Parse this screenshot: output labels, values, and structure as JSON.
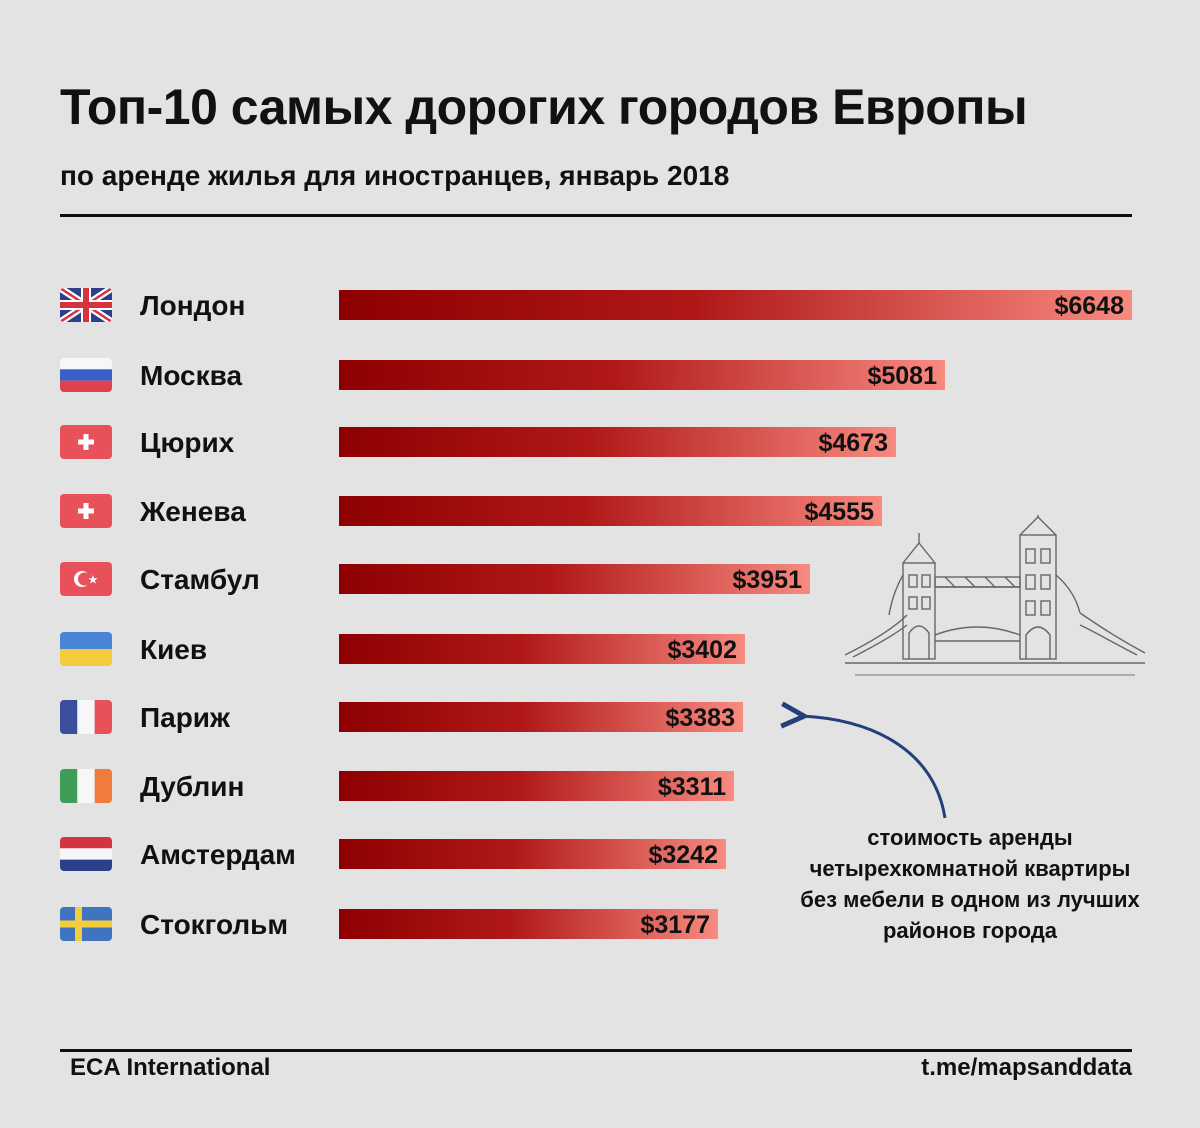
{
  "header": {
    "title": "Топ-10 самых дорогих городов Европы",
    "subtitle": "по аренде жилья для иностранцев, январь 2018"
  },
  "footer": {
    "source": "ECA International",
    "credit": "t.me/mapsanddata"
  },
  "annotation": {
    "lines": [
      "стоимость аренды",
      "четырехкомнатной квартиры",
      "без мебели в одном из лучших",
      "районов города"
    ]
  },
  "colors": {
    "bar_start": "#8e0000",
    "bar_end": "#f88a80",
    "arrow": "#24407a"
  },
  "chart_data": {
    "type": "bar",
    "orientation": "horizontal",
    "categories": [
      "Лондон",
      "Москва",
      "Цюрих",
      "Женева",
      "Стамбул",
      "Киев",
      "Париж",
      "Дублин",
      "Амстердам",
      "Стокгольм"
    ],
    "values": [
      6648,
      5081,
      4673,
      4555,
      3951,
      3402,
      3383,
      3311,
      3242,
      3177
    ],
    "value_labels": [
      "$6648",
      "$5081",
      "$4673",
      "$4555",
      "$3951",
      "$3402",
      "$3383",
      "$3311",
      "$3242",
      "$3177"
    ],
    "flags": [
      "uk-flag-icon",
      "russia-flag-icon",
      "switzerland-flag-icon",
      "switzerland-flag-icon",
      "turkey-flag-icon",
      "ukraine-flag-icon",
      "france-flag-icon",
      "ireland-flag-icon",
      "netherlands-flag-icon",
      "sweden-flag-icon"
    ],
    "xlim": [
      0,
      6648
    ],
    "grid": false,
    "legend": "none"
  }
}
